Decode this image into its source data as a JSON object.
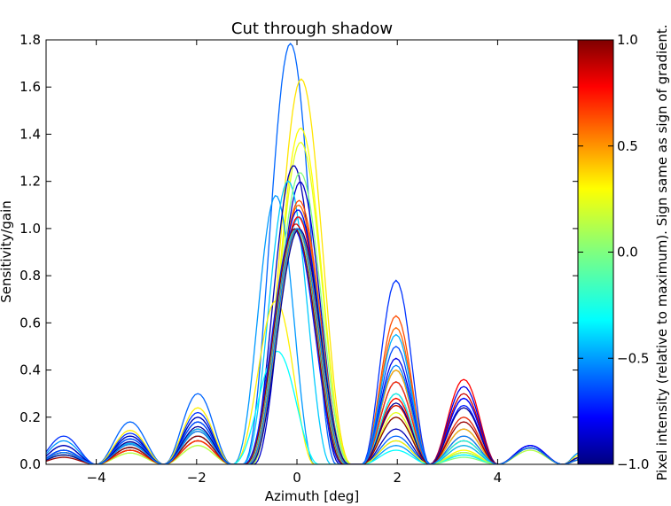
{
  "chart_data": {
    "type": "line",
    "title": "Cut through shadow",
    "xlabel": "Azimuth [deg]",
    "ylabel": "Sensitivity/gain",
    "xlim": [
      -5,
      5.6
    ],
    "ylim": [
      0,
      1.8
    ],
    "xticks": [
      -4,
      -2,
      0,
      2,
      4
    ],
    "xtick_labels": [
      "−4",
      "−2",
      "0",
      "2",
      "4"
    ],
    "yticks": [
      0.0,
      0.2,
      0.4,
      0.6,
      0.8,
      1.0,
      1.2,
      1.4,
      1.6,
      1.8
    ],
    "ytick_labels": [
      "0.0",
      "0.2",
      "0.4",
      "0.6",
      "0.8",
      "1.0",
      "1.2",
      "1.4",
      "1.6",
      "1.8"
    ],
    "grid": false,
    "colorbar": {
      "label": "Pixel intensity (relative to maximum). Sign same as sign of gradient.",
      "range": [
        -1.0,
        1.0
      ],
      "ticks": [
        1.0,
        0.5,
        0.0,
        -0.5,
        -1.0
      ],
      "tick_labels": [
        "1.0",
        "0.5",
        "0.0",
        "−0.5",
        "−1.0"
      ],
      "colormap": "jet"
    },
    "series": [
      {
        "intensity": -0.55,
        "shift": -0.6,
        "width": 0.85,
        "peak": 1.8,
        "lobes": [
          0.08,
          0.3,
          0.05,
          0.12,
          0.03,
          0.05
        ]
      },
      {
        "intensity": 0.3,
        "shift": 0.4,
        "width": 0.9,
        "peak": 1.64,
        "lobes": [
          0.05,
          0.12,
          0.03,
          0.28,
          0.02,
          0.08
        ]
      },
      {
        "intensity": 0.25,
        "shift": 0.35,
        "width": 0.9,
        "peak": 1.43,
        "lobes": [
          0.05,
          0.08,
          0.02,
          0.25,
          0.02,
          0.06
        ]
      },
      {
        "intensity": 0.2,
        "shift": 0.35,
        "width": 0.9,
        "peak": 1.37,
        "lobes": [
          0.06,
          0.1,
          0.02,
          0.22,
          0.02,
          0.05
        ]
      },
      {
        "intensity": -0.45,
        "shift": -1.9,
        "width": 0.75,
        "peak": 1.25,
        "lobes": [
          0.1,
          0.2,
          0.05,
          0.08,
          0.02,
          0.04
        ]
      },
      {
        "intensity": -0.9,
        "shift": -0.3,
        "width": 0.85,
        "peak": 1.27,
        "lobes": [
          0.08,
          0.2,
          0.02,
          0.15,
          0.02,
          0.1
        ]
      },
      {
        "intensity": -0.85,
        "shift": 0.3,
        "width": 0.85,
        "peak": 1.2,
        "lobes": [
          0.05,
          0.15,
          0.02,
          0.3,
          0.03,
          0.28
        ]
      },
      {
        "intensity": -0.35,
        "shift": -0.8,
        "width": 0.8,
        "peak": 1.22,
        "lobes": [
          0.04,
          0.1,
          0.02,
          0.1,
          0.02,
          0.05
        ]
      },
      {
        "intensity": 0.0,
        "shift": 0.3,
        "width": 0.9,
        "peak": 1.24,
        "lobes": [
          0.05,
          0.12,
          0.02,
          0.2,
          0.02,
          0.03
        ]
      },
      {
        "intensity": 0.6,
        "shift": 0.2,
        "width": 0.9,
        "peak": 1.12,
        "lobes": [
          0.05,
          0.15,
          0.03,
          0.63,
          0.02,
          0.12
        ]
      },
      {
        "intensity": 0.55,
        "shift": 0.15,
        "width": 0.9,
        "peak": 1.1,
        "lobes": [
          0.05,
          0.12,
          0.03,
          0.58,
          0.02,
          0.1
        ]
      },
      {
        "intensity": -0.65,
        "shift": 0.0,
        "width": 0.95,
        "peak": 1.0,
        "lobes": [
          0.12,
          0.22,
          0.03,
          0.78,
          0.03,
          0.15
        ]
      },
      {
        "intensity": 0.28,
        "shift": -1.9,
        "width": 0.75,
        "peak": 0.76,
        "lobes": [
          0.05,
          0.24,
          0.04,
          0.1,
          0.02,
          0.05
        ]
      },
      {
        "intensity": -0.25,
        "shift": -1.8,
        "width": 0.8,
        "peak": 0.52,
        "lobes": [
          0.04,
          0.18,
          0.03,
          0.06,
          0.02,
          0.04
        ]
      },
      {
        "intensity": -0.4,
        "shift": 0.2,
        "width": 0.9,
        "peak": 1.05,
        "lobes": [
          0.06,
          0.15,
          0.03,
          0.55,
          0.02,
          0.08
        ]
      },
      {
        "intensity": 0.75,
        "shift": 0.1,
        "width": 0.9,
        "peak": 1.05,
        "lobes": [
          0.05,
          0.1,
          0.03,
          0.28,
          0.02,
          0.36
        ]
      },
      {
        "intensity": -0.8,
        "shift": 0.1,
        "width": 0.9,
        "peak": 1.08,
        "lobes": [
          0.05,
          0.18,
          0.03,
          0.45,
          0.02,
          0.33
        ]
      },
      {
        "intensity": -0.75,
        "shift": 0.0,
        "width": 0.9,
        "peak": 1.0,
        "lobes": [
          0.06,
          0.12,
          0.02,
          0.35,
          0.03,
          0.28
        ]
      },
      {
        "intensity": 0.85,
        "shift": -0.1,
        "width": 0.9,
        "peak": 1.02,
        "lobes": [
          0.04,
          0.1,
          0.02,
          0.25,
          0.02,
          0.3
        ]
      },
      {
        "intensity": -0.7,
        "shift": -0.3,
        "width": 0.9,
        "peak": 1.0,
        "lobes": [
          0.05,
          0.12,
          0.02,
          0.4,
          0.02,
          0.25
        ]
      },
      {
        "intensity": 0.1,
        "shift": 0.0,
        "width": 0.9,
        "peak": 1.0,
        "lobes": [
          0.04,
          0.08,
          0.02,
          0.2,
          0.01,
          0.05
        ]
      },
      {
        "intensity": 0.4,
        "shift": 0.1,
        "width": 0.9,
        "peak": 1.0,
        "lobes": [
          0.04,
          0.14,
          0.02,
          0.4,
          0.02,
          0.15
        ]
      },
      {
        "intensity": -0.6,
        "shift": -0.2,
        "width": 0.9,
        "peak": 1.0,
        "lobes": [
          0.06,
          0.18,
          0.02,
          0.5,
          0.02,
          0.2
        ]
      },
      {
        "intensity": -0.2,
        "shift": -0.15,
        "width": 0.9,
        "peak": 1.0,
        "lobes": [
          0.04,
          0.12,
          0.02,
          0.3,
          0.02,
          0.1
        ]
      },
      {
        "intensity": 0.65,
        "shift": 0.05,
        "width": 0.9,
        "peak": 1.0,
        "lobes": [
          0.05,
          0.1,
          0.02,
          0.35,
          0.02,
          0.2
        ]
      },
      {
        "intensity": -0.95,
        "shift": 0.2,
        "width": 0.9,
        "peak": 1.0,
        "lobes": [
          0.04,
          0.16,
          0.03,
          0.26,
          0.02,
          0.24
        ]
      },
      {
        "intensity": 0.95,
        "shift": -0.2,
        "width": 0.9,
        "peak": 1.0,
        "lobes": [
          0.03,
          0.12,
          0.02,
          0.2,
          0.02,
          0.18
        ]
      },
      {
        "intensity": -0.5,
        "shift": 0.05,
        "width": 0.9,
        "peak": 1.0,
        "lobes": [
          0.05,
          0.14,
          0.02,
          0.42,
          0.02,
          0.12
        ]
      }
    ]
  }
}
